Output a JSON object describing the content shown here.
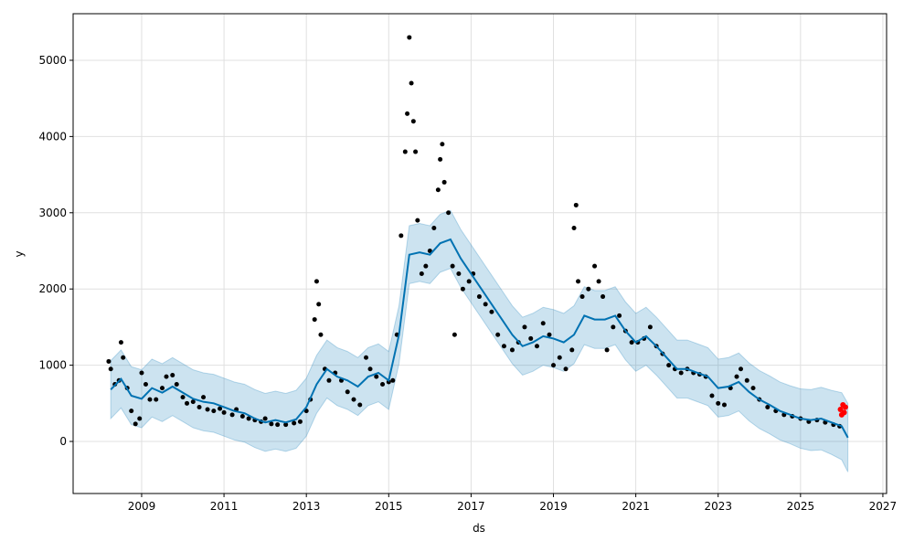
{
  "chart_data": {
    "type": "forecast",
    "xlabel": "ds",
    "ylabel": "y",
    "xlim": [
      2007.336,
      2027.09
    ],
    "ylim": [
      -683,
      5611
    ],
    "xticks": [
      2009,
      2011,
      2013,
      2015,
      2017,
      2019,
      2021,
      2023,
      2025,
      2027
    ],
    "yticks": [
      0,
      1000,
      2000,
      3000,
      4000,
      5000
    ],
    "grid": true,
    "observed": {
      "color": "#000000",
      "x": [
        2008.2,
        2008.25,
        2008.35,
        2008.45,
        2008.5,
        2008.55,
        2008.65,
        2008.75,
        2008.85,
        2008.95,
        2009.0,
        2009.1,
        2009.2,
        2009.35,
        2009.5,
        2009.6,
        2009.75,
        2009.85,
        2010.0,
        2010.1,
        2010.25,
        2010.4,
        2010.5,
        2010.6,
        2010.75,
        2010.9,
        2011.0,
        2011.2,
        2011.3,
        2011.45,
        2011.6,
        2011.75,
        2011.9,
        2012.0,
        2012.15,
        2012.3,
        2012.5,
        2012.7,
        2012.85,
        2013.0,
        2013.1,
        2013.2,
        2013.25,
        2013.3,
        2013.35,
        2013.45,
        2013.55,
        2013.7,
        2013.85,
        2014.0,
        2014.15,
        2014.3,
        2014.45,
        2014.55,
        2014.7,
        2014.85,
        2015.0,
        2015.1,
        2015.2,
        2015.3,
        2015.4,
        2015.45,
        2015.5,
        2015.55,
        2015.6,
        2015.65,
        2015.7,
        2015.8,
        2015.9,
        2016.0,
        2016.1,
        2016.2,
        2016.25,
        2016.3,
        2016.35,
        2016.45,
        2016.55,
        2016.6,
        2016.7,
        2016.8,
        2016.95,
        2017.05,
        2017.2,
        2017.35,
        2017.5,
        2017.65,
        2017.8,
        2018.0,
        2018.15,
        2018.3,
        2018.45,
        2018.6,
        2018.75,
        2018.9,
        2019.0,
        2019.15,
        2019.3,
        2019.45,
        2019.5,
        2019.55,
        2019.6,
        2019.7,
        2019.85,
        2020.0,
        2020.1,
        2020.2,
        2020.3,
        2020.45,
        2020.6,
        2020.75,
        2020.9,
        2021.05,
        2021.2,
        2021.35,
        2021.5,
        2021.65,
        2021.8,
        2021.95,
        2022.1,
        2022.25,
        2022.4,
        2022.55,
        2022.7,
        2022.85,
        2023.0,
        2023.15,
        2023.3,
        2023.45,
        2023.55,
        2023.7,
        2023.85,
        2024.0,
        2024.2,
        2024.4,
        2024.6,
        2024.8,
        2025.0,
        2025.2,
        2025.4,
        2025.6,
        2025.8,
        2025.95
      ],
      "y": [
        1050,
        950,
        750,
        800,
        1300,
        1100,
        700,
        400,
        230,
        300,
        900,
        750,
        550,
        550,
        700,
        850,
        870,
        750,
        580,
        500,
        520,
        450,
        580,
        420,
        400,
        430,
        380,
        350,
        420,
        330,
        300,
        280,
        260,
        300,
        230,
        220,
        220,
        240,
        260,
        400,
        550,
        1600,
        2100,
        1800,
        1400,
        950,
        800,
        900,
        800,
        650,
        550,
        480,
        1100,
        950,
        850,
        750,
        780,
        800,
        1400,
        2700,
        3800,
        4300,
        5300,
        4700,
        4200,
        3800,
        2900,
        2200,
        2300,
        2500,
        2800,
        3300,
        3700,
        3900,
        3400,
        3000,
        2300,
        1400,
        2200,
        2000,
        2100,
        2200,
        1900,
        1800,
        1700,
        1400,
        1250,
        1200,
        1300,
        1500,
        1350,
        1250,
        1550,
        1400,
        1000,
        1100,
        950,
        1200,
        2800,
        3100,
        2100,
        1900,
        2000,
        2300,
        2100,
        1900,
        1200,
        1500,
        1650,
        1450,
        1300,
        1300,
        1350,
        1500,
        1250,
        1150,
        1000,
        950,
        900,
        950,
        900,
        880,
        850,
        600,
        500,
        480,
        700,
        850,
        950,
        800,
        700,
        550,
        450,
        400,
        350,
        330,
        300,
        260,
        280,
        250,
        220,
        200
      ]
    },
    "future_observed": {
      "color": "#ff0000",
      "x": [
        2025.97,
        2026.0,
        2026.03,
        2026.06,
        2026.09
      ],
      "y": [
        420,
        350,
        480,
        380,
        450
      ]
    },
    "forecast": {
      "color": "#0072B2",
      "x": [
        2008.25,
        2008.5,
        2008.75,
        2009.0,
        2009.25,
        2009.5,
        2009.75,
        2010.0,
        2010.25,
        2010.5,
        2010.75,
        2011.0,
        2011.25,
        2011.5,
        2011.75,
        2012.0,
        2012.25,
        2012.5,
        2012.75,
        2013.0,
        2013.25,
        2013.5,
        2013.75,
        2014.0,
        2014.25,
        2014.5,
        2014.75,
        2015.0,
        2015.25,
        2015.5,
        2015.75,
        2016.0,
        2016.25,
        2016.5,
        2016.75,
        2017.0,
        2017.25,
        2017.5,
        2017.75,
        2018.0,
        2018.25,
        2018.5,
        2018.75,
        2019.0,
        2019.25,
        2019.5,
        2019.75,
        2020.0,
        2020.25,
        2020.5,
        2020.75,
        2021.0,
        2021.25,
        2021.5,
        2021.75,
        2022.0,
        2022.25,
        2022.5,
        2022.75,
        2023.0,
        2023.25,
        2023.5,
        2023.75,
        2024.0,
        2024.25,
        2024.5,
        2024.75,
        2025.0,
        2025.25,
        2025.5,
        2025.75,
        2026.0,
        2026.15
      ],
      "values": [
        680,
        820,
        600,
        560,
        700,
        640,
        720,
        640,
        560,
        520,
        500,
        450,
        400,
        370,
        300,
        250,
        280,
        250,
        290,
        450,
        750,
        950,
        850,
        800,
        720,
        850,
        900,
        800,
        1400,
        2450,
        2480,
        2450,
        2600,
        2650,
        2400,
        2200,
        2000,
        1800,
        1600,
        1400,
        1250,
        1300,
        1380,
        1350,
        1300,
        1400,
        1650,
        1600,
        1600,
        1650,
        1450,
        1300,
        1380,
        1250,
        1100,
        950,
        950,
        900,
        850,
        700,
        720,
        780,
        650,
        550,
        480,
        400,
        350,
        300,
        280,
        300,
        250,
        200,
        50
      ],
      "lower": [
        300,
        440,
        220,
        180,
        320,
        260,
        340,
        260,
        180,
        140,
        120,
        70,
        20,
        -10,
        -80,
        -130,
        -100,
        -130,
        -90,
        70,
        370,
        570,
        470,
        420,
        340,
        470,
        520,
        420,
        1020,
        2070,
        2100,
        2070,
        2220,
        2270,
        2020,
        1820,
        1620,
        1420,
        1220,
        1020,
        870,
        920,
        1000,
        970,
        920,
        1020,
        1270,
        1220,
        1220,
        1270,
        1070,
        920,
        1000,
        870,
        720,
        570,
        570,
        520,
        470,
        320,
        340,
        400,
        270,
        170,
        100,
        20,
        -30,
        -90,
        -120,
        -110,
        -170,
        -240,
        -400
      ],
      "upper": [
        1060,
        1200,
        980,
        940,
        1080,
        1020,
        1100,
        1020,
        940,
        900,
        880,
        830,
        780,
        750,
        680,
        630,
        660,
        630,
        670,
        830,
        1130,
        1330,
        1230,
        1180,
        1100,
        1230,
        1280,
        1180,
        1780,
        2830,
        2860,
        2830,
        2980,
        3030,
        2780,
        2580,
        2380,
        2180,
        1980,
        1780,
        1630,
        1680,
        1760,
        1730,
        1680,
        1780,
        2030,
        1980,
        1980,
        2030,
        1830,
        1680,
        1760,
        1630,
        1480,
        1330,
        1330,
        1280,
        1230,
        1080,
        1100,
        1160,
        1030,
        930,
        860,
        780,
        730,
        690,
        680,
        710,
        670,
        640,
        500
      ]
    }
  }
}
